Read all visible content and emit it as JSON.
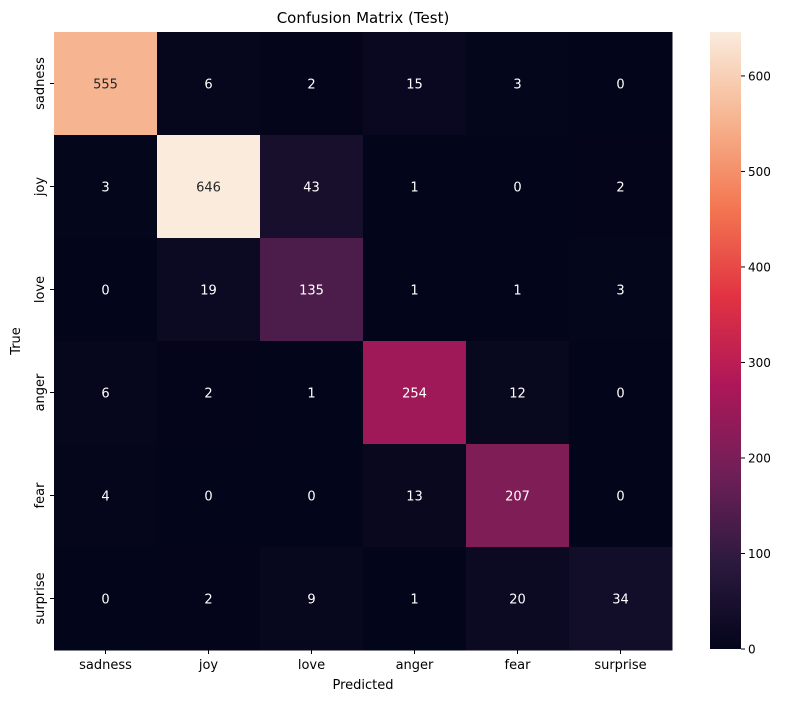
{
  "chart_data": {
    "type": "heatmap",
    "title": "Confusion Matrix (Test)",
    "xlabel": "Predicted",
    "ylabel": "True",
    "x_categories": [
      "sadness",
      "joy",
      "love",
      "anger",
      "fear",
      "surprise"
    ],
    "y_categories": [
      "sadness",
      "joy",
      "love",
      "anger",
      "fear",
      "surprise"
    ],
    "values": [
      [
        555,
        6,
        2,
        15,
        3,
        0
      ],
      [
        3,
        646,
        43,
        1,
        0,
        2
      ],
      [
        0,
        19,
        135,
        1,
        1,
        3
      ],
      [
        6,
        2,
        1,
        254,
        12,
        0
      ],
      [
        4,
        0,
        0,
        13,
        207,
        0
      ],
      [
        0,
        2,
        9,
        1,
        20,
        34
      ]
    ],
    "colorbar": {
      "min": 0,
      "max": 646,
      "ticks": [
        0,
        100,
        200,
        300,
        400,
        500,
        600
      ]
    },
    "colormap": [
      "#03051a",
      "#2d1a3f",
      "#701f57",
      "#ae1759",
      "#e13342",
      "#f37651",
      "#f6b48f",
      "#faebdd"
    ]
  }
}
